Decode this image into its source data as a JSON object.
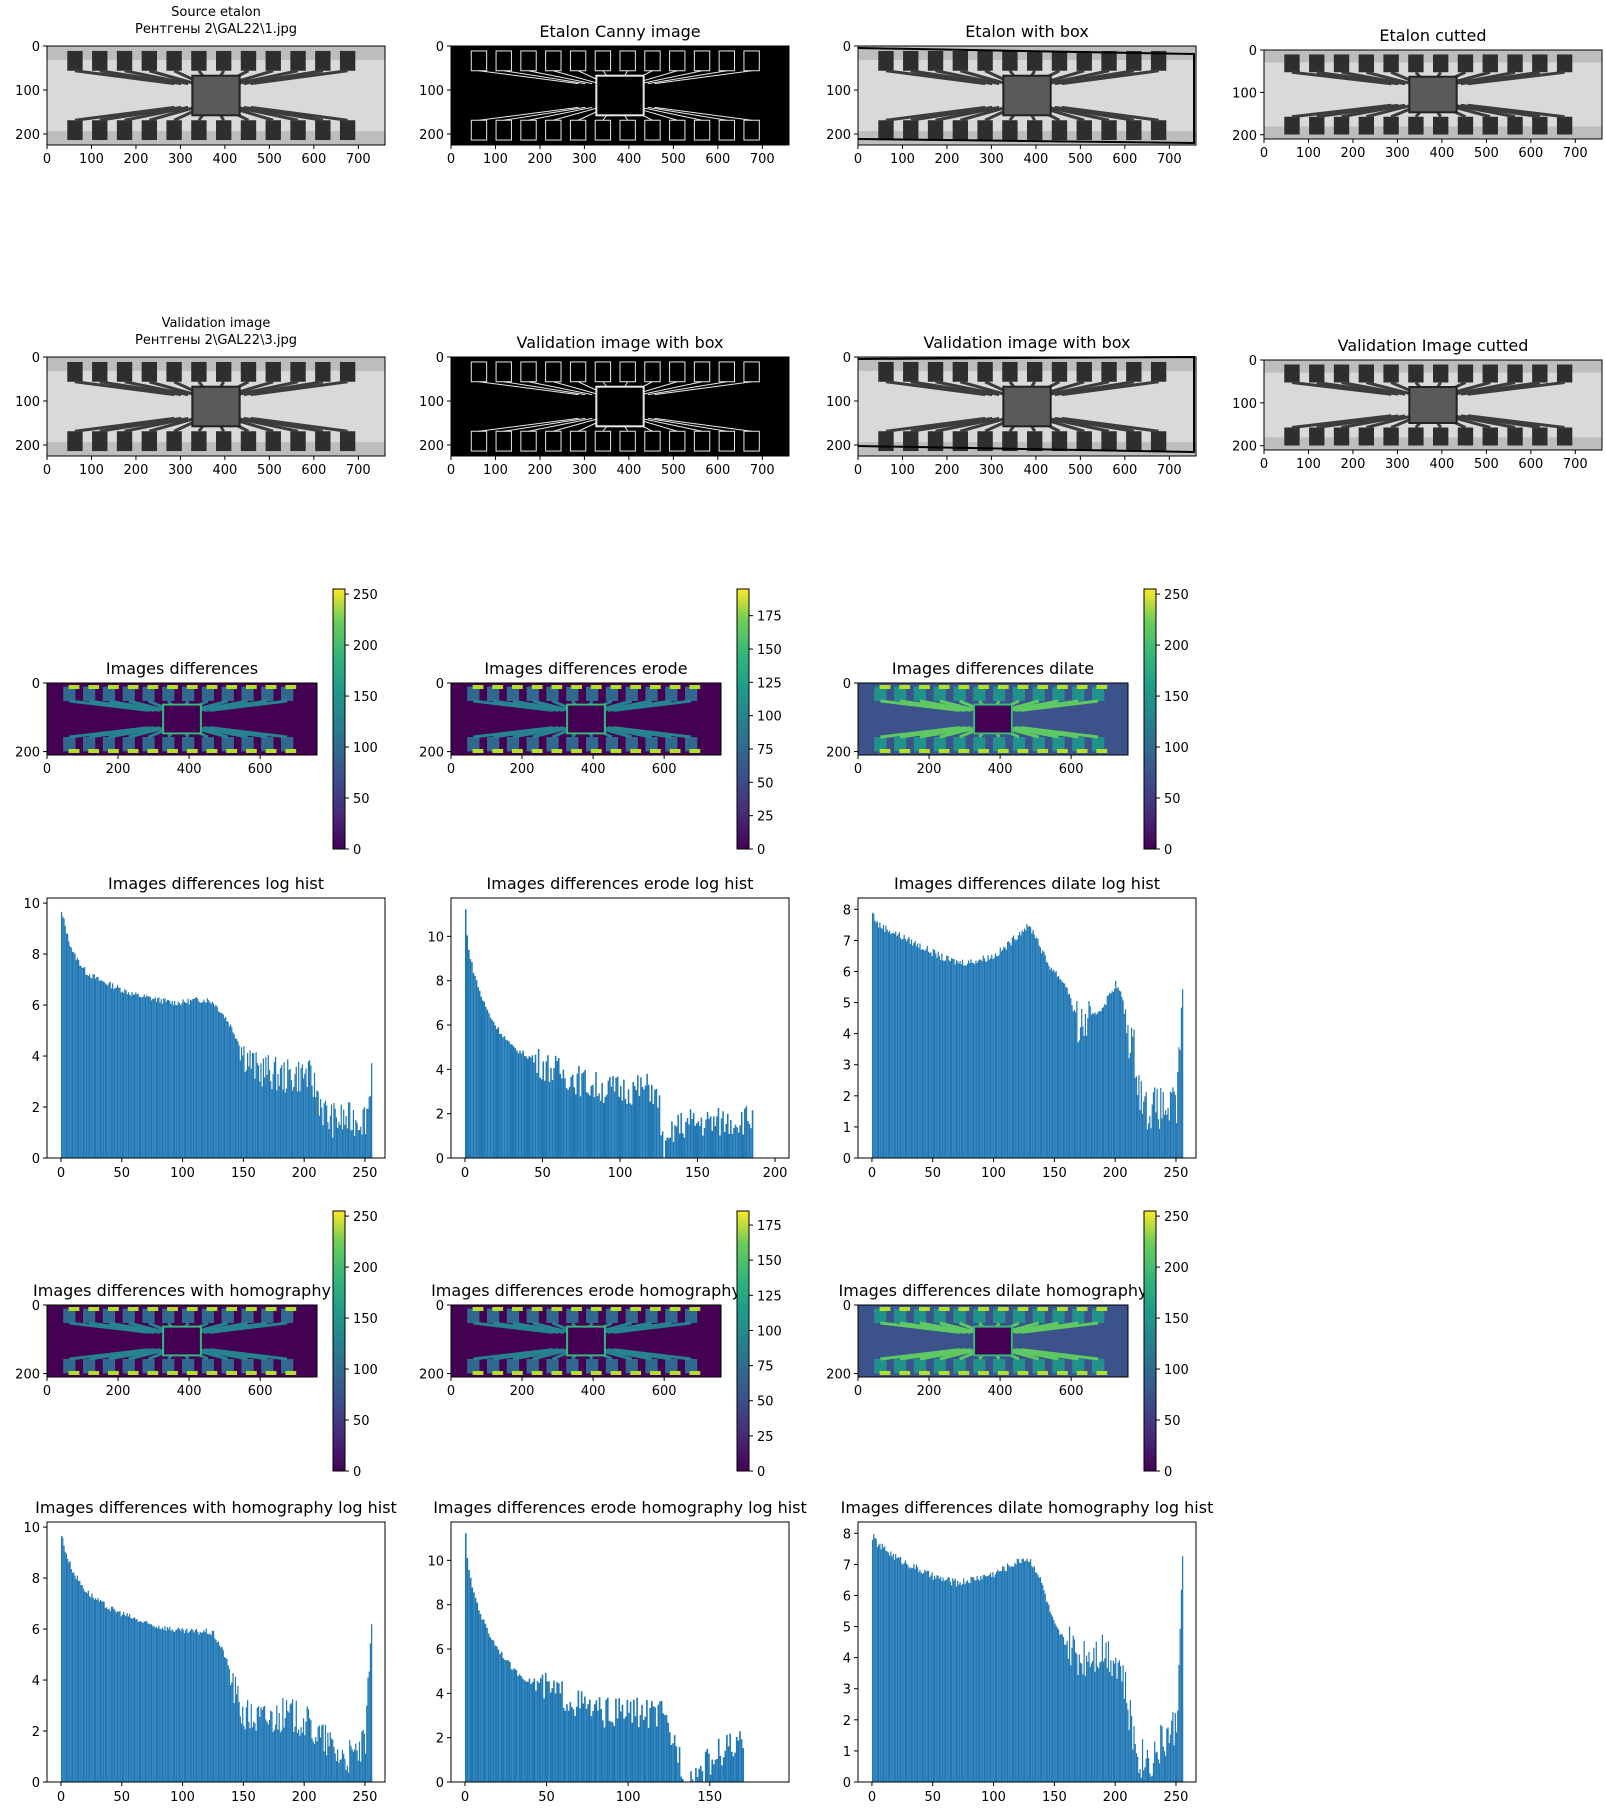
{
  "figure": {
    "titles": {
      "source_etalon": [
        "Source etalon",
        "Рентгены 2\\GAL22\\1.jpg"
      ],
      "etalon_canny": "Etalon Canny image",
      "etalon_box": "Etalon with box",
      "etalon_cutted": "Etalon cutted",
      "validation_image": [
        "Validation image",
        "Рентгены 2\\GAL22\\3.jpg"
      ],
      "validation_box_canny": "Validation image with box",
      "validation_box": "Validation image with box",
      "validation_cutted": "Validation Image cutted",
      "diff": "Images differences",
      "diff_erode": "Images differences erode",
      "diff_dilate": "Images differences dilate",
      "diff_homo": "Images differences with homography",
      "diff_erode_homo": "Images differences erode homography",
      "diff_dilate_homo": "Images differences dilate homography"
    },
    "image_axes": {
      "x_ticks_full": [
        "0",
        "100",
        "200",
        "300",
        "400",
        "500",
        "600",
        "700"
      ],
      "x_ticks_wide": [
        "0",
        "200",
        "400",
        "600"
      ],
      "y_ticks_tall": [
        "0",
        "100",
        "200"
      ],
      "y_ticks_short": [
        "0",
        "200"
      ]
    },
    "colorbars": {
      "cb_0_255": [
        "0",
        "50",
        "100",
        "150",
        "200",
        "250"
      ],
      "cb_0_175_a": [
        "0",
        "25",
        "50",
        "75",
        "100",
        "125",
        "150",
        "175"
      ],
      "cb_0_175_b": [
        "0",
        "25",
        "50",
        "75",
        "100",
        "125",
        "150",
        "175"
      ]
    },
    "colors": {
      "hist_bar": "#1f77b4",
      "viridis_low": "#440154",
      "viridis_mid": "#21918c",
      "viridis_high": "#fde725"
    }
  },
  "chart_data": [
    {
      "type": "bar",
      "title": "Images differences log hist",
      "xlim": [
        0,
        255
      ],
      "ylim": [
        0,
        10
      ],
      "x_ticks": [
        "0",
        "50",
        "100",
        "150",
        "200",
        "250"
      ],
      "y_ticks": [
        "0",
        "2",
        "4",
        "6",
        "8",
        "10"
      ],
      "series": [
        {
          "x": [
            0,
            2,
            5,
            10,
            20,
            30,
            40,
            50,
            60,
            70,
            80,
            90,
            100,
            110,
            120,
            125,
            130,
            135,
            140,
            145,
            150,
            160,
            170,
            180,
            190,
            200,
            205,
            210,
            215,
            220,
            230,
            240,
            250,
            253,
            255
          ],
          "values": [
            9.6,
            9.3,
            8.7,
            8.0,
            7.3,
            7.0,
            6.8,
            6.6,
            6.4,
            6.3,
            6.2,
            6.1,
            6.1,
            6.2,
            6.2,
            6.1,
            5.8,
            5.5,
            5.1,
            4.6,
            4.1,
            3.5,
            3.4,
            3.2,
            3.2,
            3.3,
            3.1,
            2.6,
            1.9,
            1.5,
            1.5,
            1.5,
            1.6,
            2.3,
            3.7
          ]
        }
      ]
    },
    {
      "type": "bar",
      "title": "Images differences erode log hist",
      "xlim": [
        0,
        200
      ],
      "ylim": [
        0,
        11.5
      ],
      "x_ticks": [
        "0",
        "50",
        "100",
        "150",
        "200"
      ],
      "y_ticks": [
        "0",
        "2",
        "4",
        "6",
        "8",
        "10"
      ],
      "series": [
        {
          "x": [
            0,
            1,
            3,
            6,
            10,
            15,
            20,
            30,
            40,
            50,
            60,
            70,
            80,
            90,
            100,
            110,
            120,
            125,
            128,
            135,
            145,
            155,
            160,
            185
          ],
          "values": [
            11.2,
            10.0,
            9.0,
            8.2,
            7.3,
            6.5,
            5.9,
            5.0,
            4.6,
            4.2,
            3.9,
            3.6,
            3.3,
            3.1,
            3.1,
            3.1,
            3.2,
            2.3,
            0,
            1.4,
            1.6,
            1.6,
            1.6,
            1.8
          ]
        }
      ]
    },
    {
      "type": "bar",
      "title": "Images differences dilate log hist",
      "xlim": [
        0,
        255
      ],
      "ylim": [
        0,
        8.2
      ],
      "x_ticks": [
        "0",
        "50",
        "100",
        "150",
        "200",
        "250"
      ],
      "y_ticks": [
        "0",
        "1",
        "2",
        "3",
        "4",
        "5",
        "6",
        "7",
        "8"
      ],
      "series": [
        {
          "x": [
            0,
            2,
            5,
            10,
            20,
            30,
            40,
            50,
            60,
            70,
            80,
            90,
            100,
            110,
            120,
            125,
            130,
            135,
            140,
            145,
            150,
            160,
            165,
            170,
            180,
            190,
            200,
            205,
            210,
            215,
            220,
            225,
            230,
            240,
            250,
            255
          ],
          "values": [
            7.9,
            7.7,
            7.5,
            7.4,
            7.2,
            7.0,
            6.8,
            6.6,
            6.4,
            6.3,
            6.3,
            6.4,
            6.5,
            6.8,
            7.2,
            7.4,
            7.4,
            7.1,
            6.6,
            6.2,
            6.0,
            5.5,
            4.8,
            4.2,
            4.5,
            4.9,
            5.6,
            5.2,
            4.0,
            3.5,
            2.2,
            1.6,
            1.6,
            1.6,
            1.6,
            5.5
          ]
        }
      ]
    },
    {
      "type": "bar",
      "title": "Images differences with homography log hist",
      "xlim": [
        0,
        255
      ],
      "ylim": [
        0,
        10
      ],
      "x_ticks": [
        "0",
        "50",
        "100",
        "150",
        "200",
        "250"
      ],
      "y_ticks": [
        "0",
        "2",
        "4",
        "6",
        "8",
        "10"
      ],
      "series": [
        {
          "x": [
            0,
            2,
            5,
            10,
            20,
            30,
            40,
            50,
            60,
            70,
            80,
            90,
            100,
            110,
            120,
            125,
            130,
            135,
            140,
            145,
            150,
            160,
            170,
            180,
            190,
            200,
            210,
            220,
            230,
            240,
            250,
            255
          ],
          "values": [
            9.7,
            9.3,
            8.8,
            8.2,
            7.5,
            7.1,
            6.8,
            6.6,
            6.4,
            6.2,
            6.1,
            6.0,
            5.9,
            5.9,
            5.9,
            5.8,
            5.4,
            4.9,
            4.0,
            3.2,
            2.6,
            2.5,
            2.5,
            2.6,
            2.6,
            2.4,
            1.9,
            1.5,
            1.0,
            1.0,
            1.5,
            6.3
          ]
        }
      ]
    },
    {
      "type": "bar",
      "title": "Images differences erode homography log hist",
      "xlim": [
        0,
        190
      ],
      "ylim": [
        0,
        11.5
      ],
      "x_ticks": [
        "0",
        "50",
        "100",
        "150"
      ],
      "y_ticks": [
        "0",
        "2",
        "4",
        "6",
        "8",
        "10"
      ],
      "series": [
        {
          "x": [
            0,
            1,
            3,
            6,
            10,
            15,
            20,
            30,
            40,
            50,
            60,
            70,
            80,
            90,
            100,
            110,
            120,
            125,
            130,
            135,
            160,
            170
          ],
          "values": [
            11.3,
            10.0,
            9.1,
            8.3,
            7.4,
            6.6,
            6.0,
            5.0,
            4.5,
            4.2,
            3.9,
            3.5,
            3.2,
            3.1,
            3.2,
            3.1,
            3.0,
            2.2,
            1.5,
            0,
            1.6,
            1.6
          ]
        }
      ]
    },
    {
      "type": "bar",
      "title": "Images differences dilate homography log hist",
      "xlim": [
        0,
        255
      ],
      "ylim": [
        0,
        8.2
      ],
      "x_ticks": [
        "0",
        "50",
        "100",
        "150",
        "200",
        "250"
      ],
      "y_ticks": [
        "0",
        "1",
        "2",
        "3",
        "4",
        "5",
        "6",
        "7",
        "8"
      ],
      "series": [
        {
          "x": [
            0,
            2,
            5,
            10,
            20,
            30,
            40,
            50,
            60,
            70,
            80,
            90,
            100,
            110,
            120,
            125,
            130,
            135,
            140,
            145,
            150,
            160,
            170,
            180,
            190,
            200,
            205,
            210,
            215,
            220,
            230,
            240,
            250,
            255
          ],
          "values": [
            7.9,
            7.8,
            7.6,
            7.5,
            7.2,
            7.0,
            6.8,
            6.6,
            6.5,
            6.4,
            6.5,
            6.6,
            6.7,
            6.9,
            7.1,
            7.2,
            7.1,
            6.8,
            6.3,
            5.6,
            5.0,
            4.4,
            4.0,
            4.2,
            4.3,
            4.0,
            3.6,
            2.4,
            1.4,
            0.8,
            0.8,
            1.4,
            1.8,
            7.2
          ]
        }
      ]
    }
  ]
}
